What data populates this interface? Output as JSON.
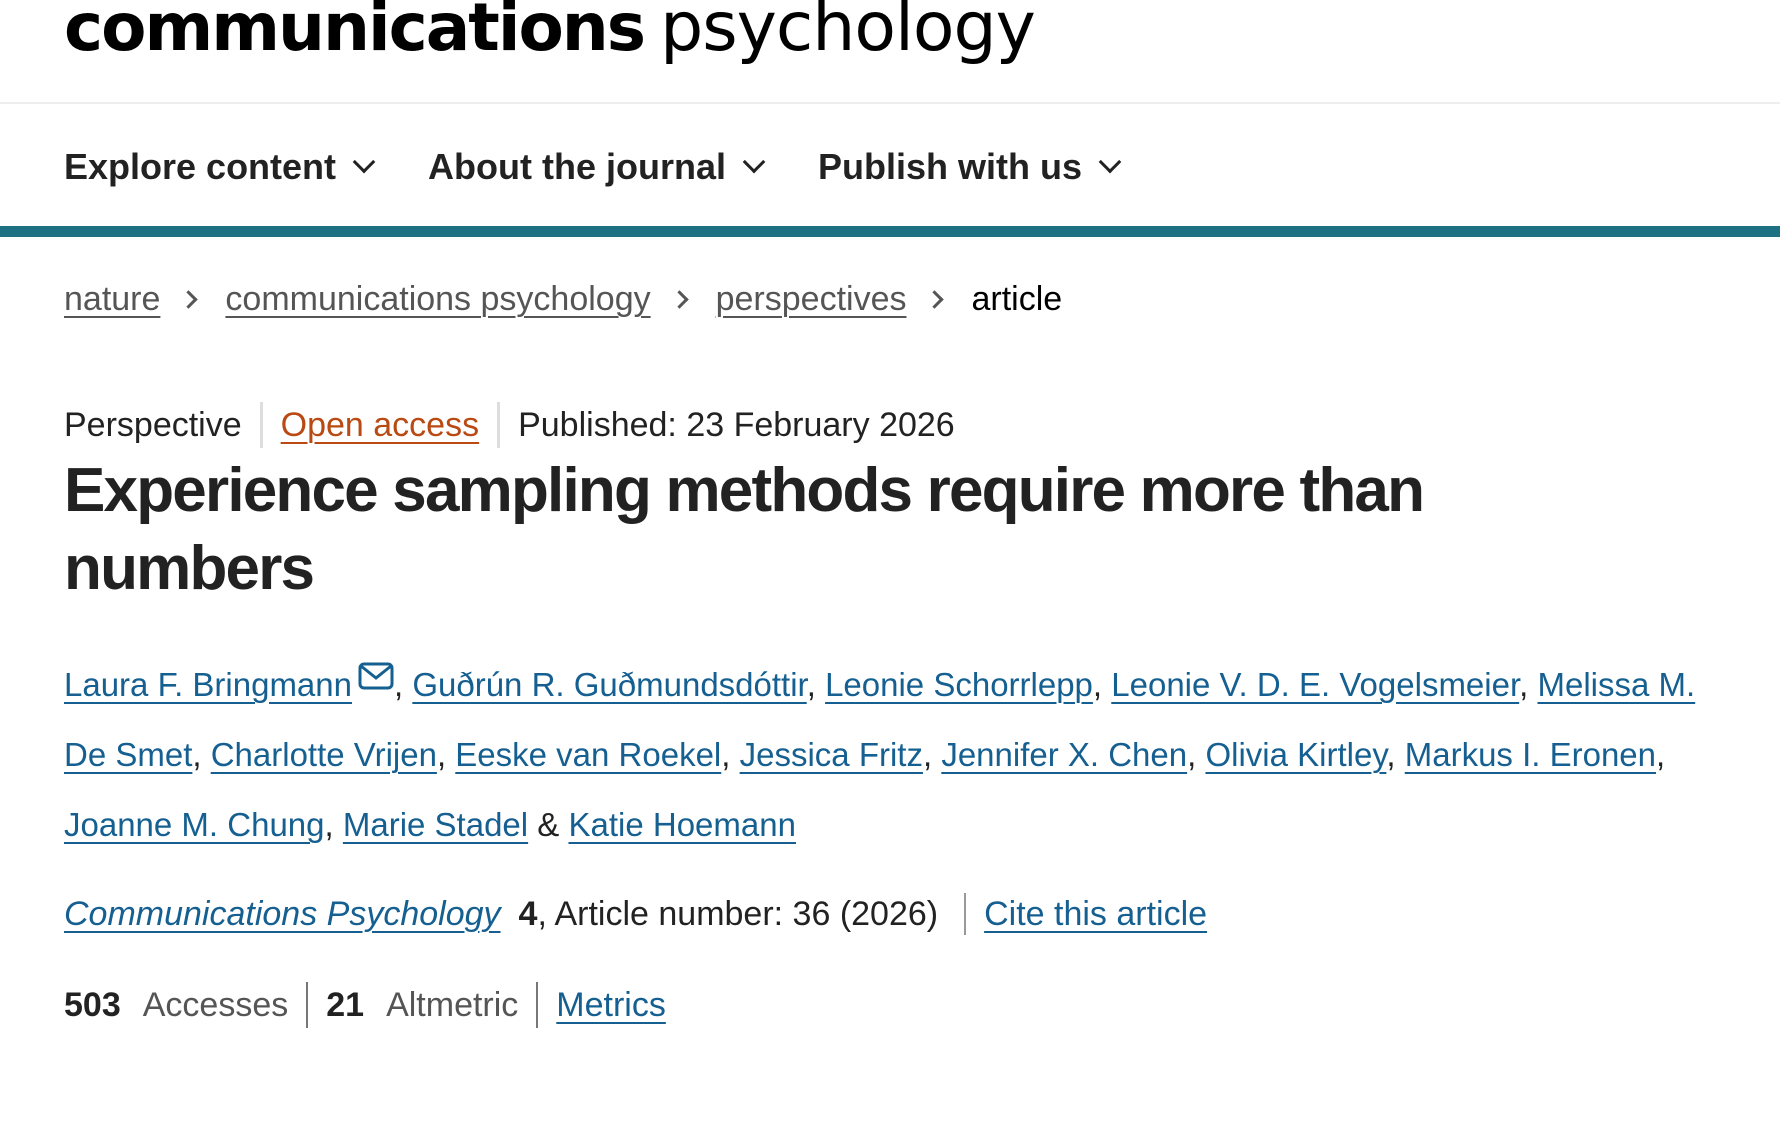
{
  "journal": {
    "logo_bold": "communications",
    "logo_light": "psychology"
  },
  "nav": {
    "items": [
      {
        "label": "Explore content"
      },
      {
        "label": "About the journal"
      },
      {
        "label": "Publish with us"
      }
    ]
  },
  "breadcrumb": {
    "items": [
      "nature",
      "communications psychology",
      "perspectives"
    ],
    "current": "article"
  },
  "article": {
    "type": "Perspective",
    "access": "Open access",
    "published": "Published: 23 February 2026",
    "title": "Experience sampling methods require more than numbers",
    "authors": [
      "Laura F. Bringmann",
      "Guðrún R. Guðmundsdóttir",
      "Leonie Schorrlepp",
      "Leonie V. D. E. Vogelsmeier",
      "Melissa M. De Smet",
      "Charlotte Vrijen",
      "Eeske van Roekel",
      "Jessica Fritz",
      "Jennifer X. Chen",
      "Olivia Kirtley",
      "Markus I. Eronen",
      "Joanne M. Chung",
      "Marie Stadel",
      "Katie Hoemann"
    ],
    "author_separator": ", ",
    "author_last_separator": " & ",
    "citation": {
      "journal_name": "Communications Psychology",
      "volume": "4",
      "article_number": ", Article number: 36 (2026)",
      "cite_label": "Cite this article"
    }
  },
  "metrics": {
    "accesses_count": "503",
    "accesses_label": "Accesses",
    "altmetric_count": "21",
    "altmetric_label": "Altmetric",
    "metrics_link": "Metrics"
  },
  "colors": {
    "accent": "#1e7183",
    "link": "#155f91",
    "open_access": "#b94a13"
  }
}
